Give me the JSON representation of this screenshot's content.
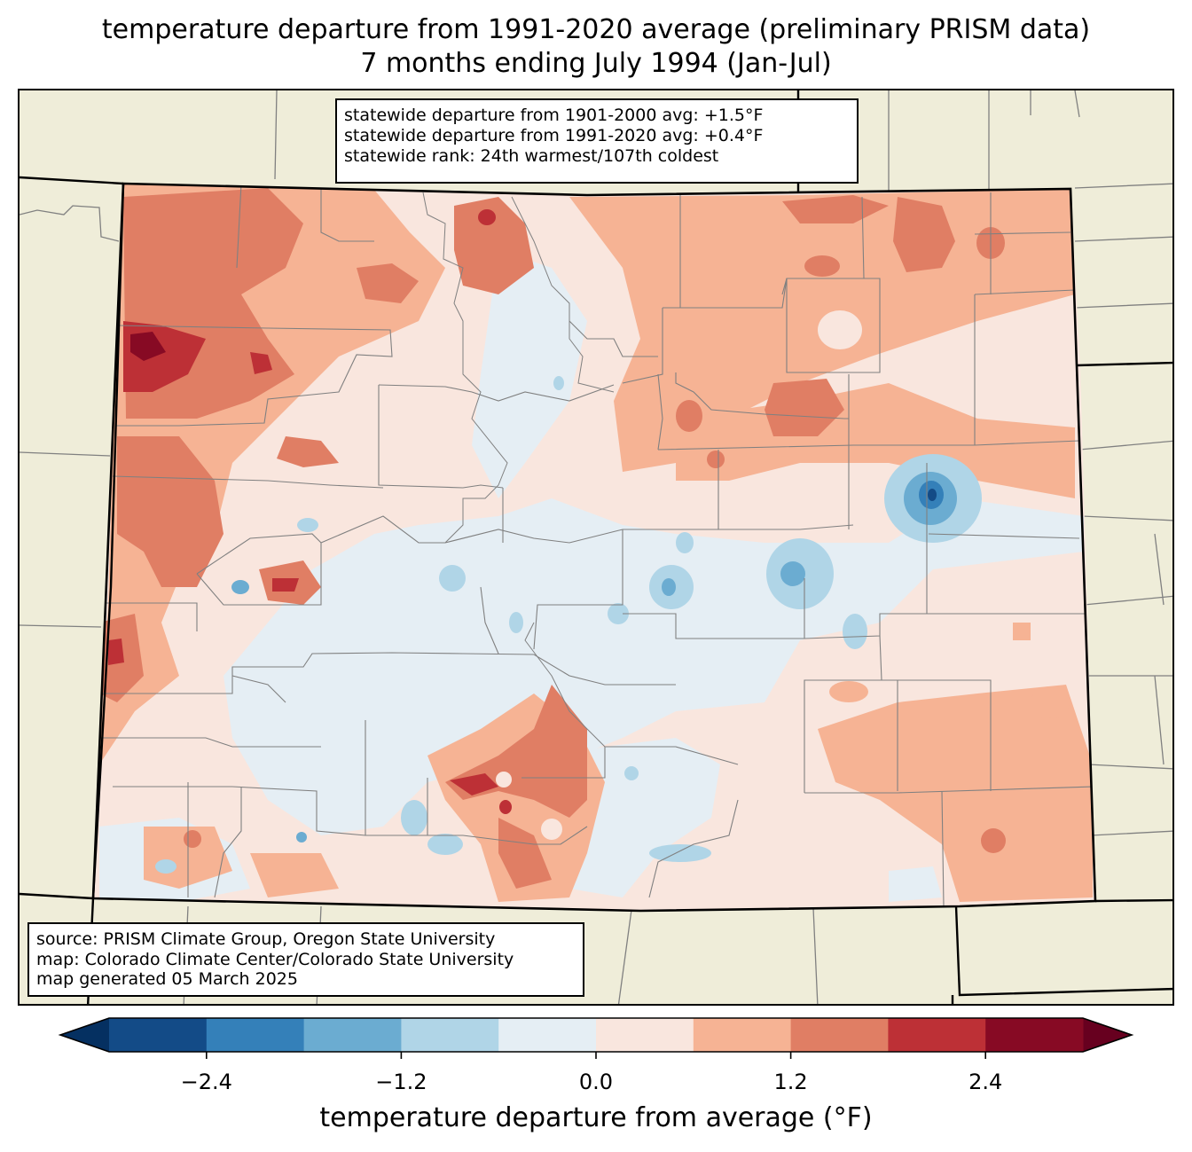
{
  "title": {
    "line1": "temperature departure from 1991-2020 average (preliminary PRISM data)",
    "line2": "7 months ending July 1994 (Jan-Jul)"
  },
  "stats_box": {
    "line1": "statewide departure from 1901-2000 avg: +1.5°F",
    "line2": "statewide departure from 1991-2020 avg: +0.4°F",
    "line3": "statewide rank: 24th warmest/107th coldest"
  },
  "source_box": {
    "line1": "source: PRISM Climate Group, Oregon State University",
    "line2": "map: Colorado Climate Center/Colorado State University",
    "line3": "map generated 05 March 2025"
  },
  "colorbar": {
    "label": "temperature departure from average (°F)",
    "bounds": [
      -3.0,
      -2.4,
      -1.8,
      -1.2,
      -0.6,
      0.0,
      0.6,
      1.2,
      1.8,
      2.4,
      3.0
    ],
    "colors": [
      "#134b87",
      "#3480b9",
      "#6bacd1",
      "#b0d5e7",
      "#e5eef4",
      "#f9e6de",
      "#f6b394",
      "#e07e64",
      "#bd3036",
      "#870a24"
    ],
    "under_color": "#053061",
    "over_color": "#67001f",
    "extend": "both",
    "ticks": [
      "−2.4",
      "−1.2",
      "0.0",
      "1.2",
      "2.4"
    ],
    "tick_values": [
      -2.4,
      -1.2,
      0.0,
      1.2,
      2.4
    ]
  },
  "map": {
    "background_color": "#efedd9",
    "state": "Colorado"
  }
}
